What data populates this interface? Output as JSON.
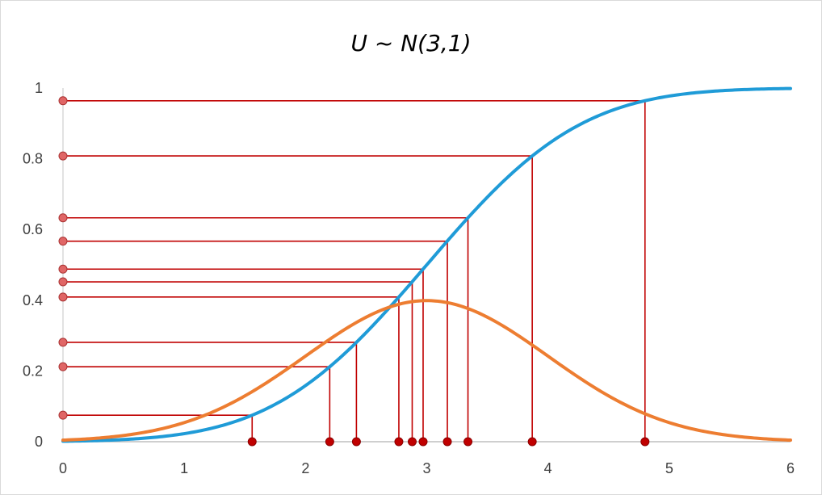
{
  "chart_data": {
    "type": "line",
    "title": "U ~ N(3,1)",
    "xlabel": "",
    "ylabel": "",
    "xlim": [
      0,
      6
    ],
    "ylim": [
      0,
      1
    ],
    "x_ticks": [
      "0",
      "1",
      "2",
      "3",
      "4",
      "5",
      "6"
    ],
    "y_ticks": [
      "0",
      "0.2",
      "0.4",
      "0.6",
      "0.8",
      "1"
    ],
    "grid": false,
    "legend": "none",
    "distribution": {
      "mean": 3,
      "sd": 1
    },
    "series": [
      {
        "kind": "cdf",
        "color": "#1f9bd7"
      },
      {
        "kind": "pdf",
        "color": "#ed7d31"
      }
    ],
    "samples": {
      "color": "#c00000",
      "marker_color": "#e06666",
      "points": [
        {
          "x": 1.56,
          "y": 0.075
        },
        {
          "x": 2.2,
          "y": 0.212
        },
        {
          "x": 2.42,
          "y": 0.281
        },
        {
          "x": 2.77,
          "y": 0.409
        },
        {
          "x": 2.88,
          "y": 0.452
        },
        {
          "x": 2.97,
          "y": 0.488
        },
        {
          "x": 3.17,
          "y": 0.567
        },
        {
          "x": 3.34,
          "y": 0.633
        },
        {
          "x": 3.87,
          "y": 0.808
        },
        {
          "x": 4.8,
          "y": 0.964
        }
      ]
    }
  }
}
